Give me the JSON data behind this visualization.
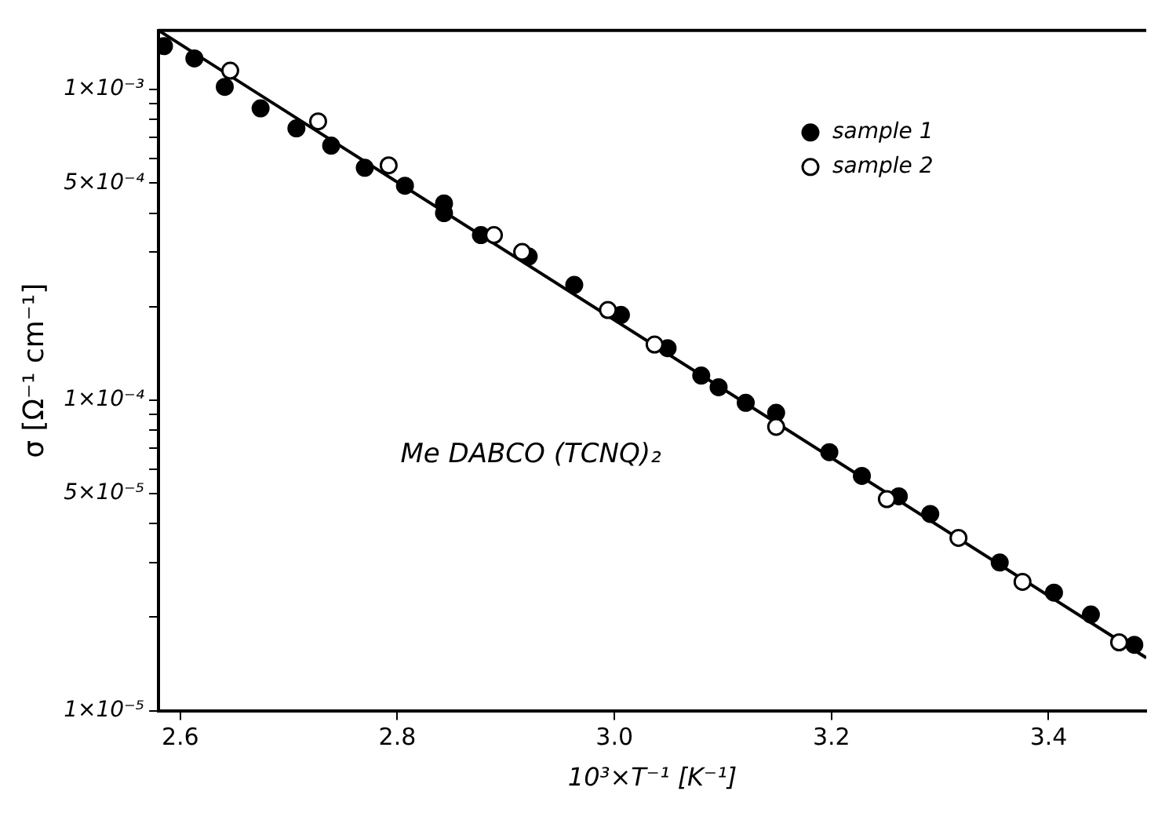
{
  "chart_data": {
    "type": "scatter",
    "xlabel": "10³×T⁻¹ [K⁻¹]",
    "ylabel": "σ [Ω⁻¹ cm⁻¹]",
    "annotations": [
      "Me DABCO (TCNQ)₂"
    ],
    "xlim": [
      2.58,
      3.49
    ],
    "xticks": [
      2.6,
      2.8,
      {
        "value": 3,
        "label": "3.0"
      },
      3.2,
      3.4
    ],
    "ylim": [
      1e-05,
      0.00155
    ],
    "log": "y",
    "yticks": [
      {
        "value": 1e-05,
        "label": "1×10⁻⁵"
      },
      {
        "value": 2e-05,
        "label": null
      },
      {
        "value": 3e-05,
        "label": null
      },
      {
        "value": 4e-05,
        "label": null
      },
      {
        "value": 5e-05,
        "label": "5×10⁻⁵"
      },
      {
        "value": 6e-05,
        "label": null
      },
      {
        "value": 7e-05,
        "label": null
      },
      {
        "value": 8e-05,
        "label": null
      },
      {
        "value": 9e-05,
        "label": null
      },
      {
        "value": 0.0001,
        "label": "1×10⁻⁴"
      },
      {
        "value": 0.0002,
        "label": null
      },
      {
        "value": 0.0003,
        "label": null
      },
      {
        "value": 0.0004,
        "label": null
      },
      {
        "value": 0.0005,
        "label": "5×10⁻⁴"
      },
      {
        "value": 0.0006,
        "label": null
      },
      {
        "value": 0.0007,
        "label": null
      },
      {
        "value": 0.0008,
        "label": null
      },
      {
        "value": 0.0009,
        "label": null
      },
      {
        "value": 0.001,
        "label": "1×10⁻³"
      }
    ],
    "grid": false,
    "legend": "top right",
    "marker": "circle",
    "series": [
      {
        "name": "sample 1",
        "color": "#000000",
        "x": [
          2.585,
          2.613,
          2.641,
          2.674,
          2.707,
          2.739,
          2.77,
          2.807,
          2.843,
          2.843,
          2.877,
          2.921,
          2.963,
          3.006,
          3.049,
          3.08,
          3.096,
          3.121,
          3.149,
          3.198,
          3.228,
          3.262,
          3.291,
          3.355,
          3.405,
          3.439,
          3.479
        ],
        "values": [
          0.00138,
          0.00126,
          0.00102,
          0.00087,
          0.00075,
          0.00066,
          0.00056,
          0.00049,
          0.00043,
          0.0004,
          0.00034,
          0.00029,
          0.000235,
          0.000188,
          0.000147,
          0.00012,
          0.00011,
          9.8e-05,
          9.1e-05,
          6.8e-05,
          5.7e-05,
          4.9e-05,
          4.3e-05,
          3e-05,
          2.4e-05,
          2.04e-05,
          1.63e-05
        ]
      },
      {
        "name": "sample 2",
        "color": "#000000",
        "x": [
          2.646,
          2.727,
          2.792,
          2.889,
          2.915,
          2.994,
          3.037,
          3.149,
          3.251,
          3.317,
          3.376,
          3.465
        ],
        "values": [
          0.00115,
          0.00079,
          0.00057,
          0.00034,
          0.0003,
          0.000195,
          0.000151,
          8.2e-05,
          4.8e-05,
          3.6e-05,
          2.6e-05,
          1.66e-05
        ]
      },
      {
        "type": "line",
        "color": "#000000",
        "marker": "none",
        "line_style": "solid",
        "x": [
          2.58,
          3.49
        ],
        "values": [
          0.00155,
          1.48e-05
        ]
      }
    ]
  }
}
